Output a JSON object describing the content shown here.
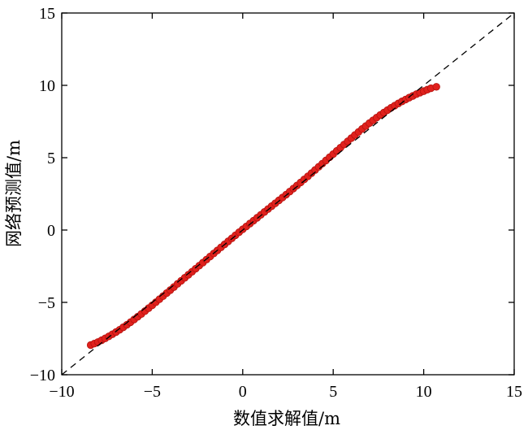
{
  "chart_data": {
    "type": "scatter",
    "title": "",
    "xlabel": "数值求解值/m",
    "ylabel": "网络预测值/m",
    "xlim": [
      -10,
      15
    ],
    "ylim": [
      -10,
      15
    ],
    "xticks": [
      -10,
      -5,
      0,
      5,
      10,
      15
    ],
    "yticks": [
      -10,
      -5,
      0,
      5,
      10,
      15
    ],
    "xtick_labels": [
      "−10",
      "−5",
      "0",
      "5",
      "10",
      "15"
    ],
    "ytick_labels": [
      "−10",
      "−5",
      "0",
      "5",
      "10",
      "15"
    ],
    "grid": false,
    "legend": "none",
    "reference_line": {
      "style": "dashed",
      "color": "#000000",
      "x": [
        -10,
        15
      ],
      "y": [
        -10,
        15
      ]
    },
    "series": [
      {
        "color": "#e0211d",
        "x": [
          -8.4,
          -8.2,
          -8.0,
          -7.8,
          -7.6,
          -7.4,
          -7.2,
          -7.0,
          -6.8,
          -6.6,
          -6.4,
          -6.2,
          -6.0,
          -5.8,
          -5.6,
          -5.4,
          -5.2,
          -5.0,
          -4.8,
          -4.6,
          -4.4,
          -4.2,
          -4.0,
          -3.8,
          -3.6,
          -3.4,
          -3.2,
          -3.0,
          -2.8,
          -2.6,
          -2.4,
          -2.2,
          -2.0,
          -1.8,
          -1.6,
          -1.4,
          -1.2,
          -1.0,
          -0.8,
          -0.6,
          -0.4,
          -0.2,
          0.0,
          0.2,
          0.4,
          0.6,
          0.8,
          1.0,
          1.2,
          1.4,
          1.6,
          1.8,
          2.0,
          2.2,
          2.4,
          2.6,
          2.8,
          3.0,
          3.2,
          3.4,
          3.6,
          3.8,
          4.0,
          4.2,
          4.4,
          4.6,
          4.8,
          5.0,
          5.2,
          5.4,
          5.6,
          5.8,
          6.0,
          6.2,
          6.4,
          6.6,
          6.8,
          7.0,
          7.2,
          7.4,
          7.6,
          7.8,
          8.0,
          8.2,
          8.4,
          8.6,
          8.8,
          9.0,
          9.2,
          9.4,
          9.6,
          9.8,
          10.0,
          10.2,
          10.4,
          10.7
        ],
        "y": [
          -7.95,
          -7.85,
          -7.74,
          -7.62,
          -7.49,
          -7.35,
          -7.2,
          -7.05,
          -6.89,
          -6.72,
          -6.55,
          -6.37,
          -6.18,
          -5.99,
          -5.8,
          -5.6,
          -5.4,
          -5.2,
          -4.99,
          -4.78,
          -4.57,
          -4.36,
          -4.15,
          -3.94,
          -3.72,
          -3.51,
          -3.3,
          -3.09,
          -2.88,
          -2.67,
          -2.46,
          -2.25,
          -2.04,
          -1.83,
          -1.62,
          -1.41,
          -1.2,
          -0.99,
          -0.78,
          -0.57,
          -0.36,
          -0.15,
          0.05,
          0.25,
          0.45,
          0.65,
          0.85,
          1.05,
          1.25,
          1.45,
          1.65,
          1.85,
          2.05,
          2.25,
          2.45,
          2.66,
          2.87,
          3.08,
          3.29,
          3.5,
          3.71,
          3.93,
          4.15,
          4.37,
          4.59,
          4.81,
          5.03,
          5.25,
          5.47,
          5.69,
          5.91,
          6.13,
          6.35,
          6.57,
          6.78,
          6.99,
          7.19,
          7.39,
          7.58,
          7.77,
          7.95,
          8.12,
          8.29,
          8.45,
          8.6,
          8.75,
          8.89,
          9.02,
          9.15,
          9.27,
          9.39,
          9.5,
          9.6,
          9.7,
          9.8,
          9.9
        ]
      }
    ]
  }
}
